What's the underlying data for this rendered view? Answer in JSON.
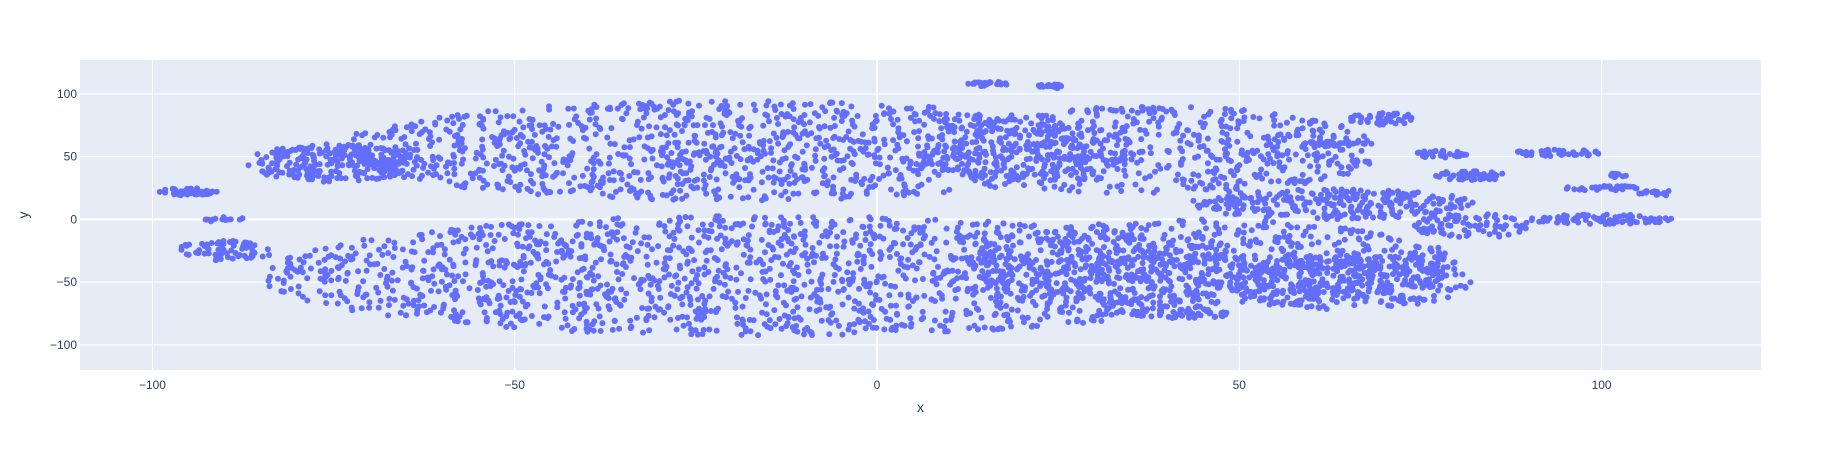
{
  "chart_data": {
    "type": "scatter",
    "xlabel": "x",
    "ylabel": "y",
    "xlim": [
      -110,
      122
    ],
    "ylim": [
      -120,
      127
    ],
    "x_ticks": [
      -100,
      -50,
      0,
      50,
      100
    ],
    "y_ticks": [
      -100,
      -50,
      0,
      50,
      100
    ],
    "grid": true,
    "legend": "none",
    "colors": {
      "marker": "#636efa",
      "plot_bg": "#e5ecf6",
      "grid": "#ffffff",
      "text": "#2a3f5f"
    },
    "series": [
      {
        "clusters": [
          {
            "cx": -20,
            "cy": 55,
            "rx": 55,
            "ry": 40,
            "n": 1200
          },
          {
            "cx": 38,
            "cy": 55,
            "rx": 32,
            "ry": 35,
            "n": 600
          },
          {
            "cx": -75,
            "cy": 45,
            "rx": 12,
            "ry": 15,
            "n": 260
          },
          {
            "cx": -95,
            "cy": 22,
            "rx": 4,
            "ry": 3,
            "n": 60
          },
          {
            "cx": 15,
            "cy": 108,
            "rx": 3,
            "ry": 2,
            "n": 25
          },
          {
            "cx": 24,
            "cy": 106,
            "rx": 2,
            "ry": 2,
            "n": 18
          },
          {
            "cx": 70,
            "cy": 80,
            "rx": 5,
            "ry": 5,
            "n": 45
          },
          {
            "cx": 62,
            "cy": 60,
            "rx": 4,
            "ry": 2,
            "n": 30
          },
          {
            "cx": 78,
            "cy": 52,
            "rx": 4,
            "ry": 3,
            "n": 30
          },
          {
            "cx": 82,
            "cy": 35,
            "rx": 5,
            "ry": 4,
            "n": 50
          },
          {
            "cx": 94,
            "cy": 53,
            "rx": 6,
            "ry": 3,
            "n": 45
          },
          {
            "cx": 100,
            "cy": 25,
            "rx": 5,
            "ry": 2,
            "n": 35
          },
          {
            "cx": 102,
            "cy": 35,
            "rx": 2,
            "ry": 2,
            "n": 12
          },
          {
            "cx": 108,
            "cy": 21,
            "rx": 3,
            "ry": 2,
            "n": 15
          },
          {
            "cx": -15,
            "cy": -45,
            "rx": 70,
            "ry": 48,
            "n": 1700
          },
          {
            "cx": 45,
            "cy": -35,
            "rx": 35,
            "ry": 35,
            "n": 700
          },
          {
            "cx": 63,
            "cy": 12,
            "rx": 20,
            "ry": 12,
            "n": 280
          },
          {
            "cx": 82,
            "cy": -5,
            "rx": 8,
            "ry": 10,
            "n": 90
          },
          {
            "cx": 100,
            "cy": 0,
            "rx": 10,
            "ry": 4,
            "n": 90
          },
          {
            "cx": 65,
            "cy": -50,
            "rx": 17,
            "ry": 22,
            "n": 320
          },
          {
            "cx": 42,
            "cy": -75,
            "rx": 7,
            "ry": 4,
            "n": 50
          },
          {
            "cx": -90,
            "cy": -25,
            "rx": 7,
            "ry": 8,
            "n": 70
          },
          {
            "cx": -90,
            "cy": 0,
            "rx": 3,
            "ry": 2,
            "n": 15
          }
        ]
      }
    ]
  }
}
